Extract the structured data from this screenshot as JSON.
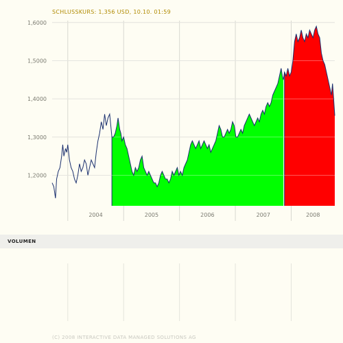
{
  "header": {
    "text": "SCHLUSSKURS: 1,356 USD, 10.10. 01:59"
  },
  "volume": {
    "label": "VOLUMEN"
  },
  "footer": {
    "copyright": "(C) 2008 INTERACTIVE DATA MANAGED SOLUTIONS AG"
  },
  "chart_data": {
    "type": "line",
    "title": "",
    "xlabel": "",
    "ylabel": "",
    "x_tick_labels": [
      "2004",
      "2005",
      "2006",
      "2007",
      "2008"
    ],
    "y_tick_labels": [
      "1,2000",
      "1,3000",
      "1,4000",
      "1,5000",
      "1,6000"
    ],
    "y_ticks": [
      1.2,
      1.3,
      1.4,
      1.5,
      1.6
    ],
    "ylim": [
      1.12,
      1.605
    ],
    "xlim": [
      2003.72,
      2008.78
    ],
    "grid": true,
    "colors": {
      "line": "#1a2f6e",
      "up_fill": "#00ff00",
      "down_fill": "#ff0000",
      "grid": "#d8d8d0"
    },
    "series": [
      {
        "values": [
          [
            2003.72,
            1.18
          ],
          [
            2003.75,
            1.17
          ],
          [
            2003.78,
            1.14
          ],
          [
            2003.8,
            1.19
          ],
          [
            2003.83,
            1.21
          ],
          [
            2003.86,
            1.22
          ],
          [
            2003.89,
            1.25
          ],
          [
            2003.91,
            1.28
          ],
          [
            2003.93,
            1.25
          ],
          [
            2003.96,
            1.27
          ],
          [
            2003.98,
            1.26
          ],
          [
            2004.0,
            1.28
          ],
          [
            2004.03,
            1.24
          ],
          [
            2004.06,
            1.22
          ],
          [
            2004.09,
            1.21
          ],
          [
            2004.12,
            1.19
          ],
          [
            2004.15,
            1.18
          ],
          [
            2004.18,
            1.2
          ],
          [
            2004.21,
            1.23
          ],
          [
            2004.24,
            1.21
          ],
          [
            2004.27,
            1.22
          ],
          [
            2004.3,
            1.24
          ],
          [
            2004.33,
            1.23
          ],
          [
            2004.36,
            1.2
          ],
          [
            2004.39,
            1.22
          ],
          [
            2004.42,
            1.24
          ],
          [
            2004.45,
            1.23
          ],
          [
            2004.48,
            1.22
          ],
          [
            2004.51,
            1.26
          ],
          [
            2004.54,
            1.29
          ],
          [
            2004.57,
            1.31
          ],
          [
            2004.6,
            1.34
          ],
          [
            2004.63,
            1.32
          ],
          [
            2004.66,
            1.36
          ],
          [
            2004.69,
            1.33
          ],
          [
            2004.72,
            1.35
          ],
          [
            2004.75,
            1.36
          ],
          [
            2004.79,
            1.3
          ],
          [
            2004.82,
            1.3
          ],
          [
            2004.85,
            1.31
          ],
          [
            2004.88,
            1.33
          ],
          [
            2004.9,
            1.35
          ],
          [
            2004.93,
            1.32
          ],
          [
            2004.95,
            1.31
          ],
          [
            2004.97,
            1.29
          ],
          [
            2005.0,
            1.3
          ],
          [
            2005.03,
            1.28
          ],
          [
            2005.06,
            1.27
          ],
          [
            2005.09,
            1.25
          ],
          [
            2005.12,
            1.23
          ],
          [
            2005.15,
            1.21
          ],
          [
            2005.18,
            1.2
          ],
          [
            2005.21,
            1.22
          ],
          [
            2005.24,
            1.21
          ],
          [
            2005.27,
            1.22
          ],
          [
            2005.3,
            1.24
          ],
          [
            2005.33,
            1.25
          ],
          [
            2005.36,
            1.22
          ],
          [
            2005.39,
            1.21
          ],
          [
            2005.42,
            1.2
          ],
          [
            2005.45,
            1.21
          ],
          [
            2005.48,
            1.2
          ],
          [
            2005.51,
            1.19
          ],
          [
            2005.54,
            1.18
          ],
          [
            2005.57,
            1.18
          ],
          [
            2005.6,
            1.17
          ],
          [
            2005.63,
            1.18
          ],
          [
            2005.66,
            1.2
          ],
          [
            2005.69,
            1.21
          ],
          [
            2005.72,
            1.2
          ],
          [
            2005.75,
            1.19
          ],
          [
            2005.78,
            1.19
          ],
          [
            2005.81,
            1.18
          ],
          [
            2005.84,
            1.19
          ],
          [
            2005.87,
            1.21
          ],
          [
            2005.9,
            1.2
          ],
          [
            2005.93,
            1.21
          ],
          [
            2005.96,
            1.22
          ],
          [
            2005.99,
            1.2
          ],
          [
            2006.02,
            1.21
          ],
          [
            2006.05,
            1.2
          ],
          [
            2006.08,
            1.22
          ],
          [
            2006.11,
            1.23
          ],
          [
            2006.14,
            1.24
          ],
          [
            2006.17,
            1.26
          ],
          [
            2006.2,
            1.28
          ],
          [
            2006.23,
            1.29
          ],
          [
            2006.26,
            1.28
          ],
          [
            2006.29,
            1.27
          ],
          [
            2006.32,
            1.28
          ],
          [
            2006.35,
            1.29
          ],
          [
            2006.38,
            1.27
          ],
          [
            2006.41,
            1.28
          ],
          [
            2006.44,
            1.29
          ],
          [
            2006.47,
            1.28
          ],
          [
            2006.5,
            1.27
          ],
          [
            2006.53,
            1.28
          ],
          [
            2006.56,
            1.26
          ],
          [
            2006.59,
            1.27
          ],
          [
            2006.62,
            1.28
          ],
          [
            2006.65,
            1.29
          ],
          [
            2006.68,
            1.31
          ],
          [
            2006.71,
            1.33
          ],
          [
            2006.74,
            1.32
          ],
          [
            2006.77,
            1.3
          ],
          [
            2006.8,
            1.3
          ],
          [
            2006.83,
            1.31
          ],
          [
            2006.86,
            1.32
          ],
          [
            2006.89,
            1.31
          ],
          [
            2006.92,
            1.32
          ],
          [
            2006.95,
            1.34
          ],
          [
            2006.98,
            1.33
          ],
          [
            2007.01,
            1.3
          ],
          [
            2007.04,
            1.3
          ],
          [
            2007.07,
            1.31
          ],
          [
            2007.1,
            1.32
          ],
          [
            2007.13,
            1.31
          ],
          [
            2007.16,
            1.33
          ],
          [
            2007.19,
            1.34
          ],
          [
            2007.22,
            1.35
          ],
          [
            2007.25,
            1.36
          ],
          [
            2007.28,
            1.35
          ],
          [
            2007.31,
            1.34
          ],
          [
            2007.34,
            1.33
          ],
          [
            2007.37,
            1.34
          ],
          [
            2007.4,
            1.35
          ],
          [
            2007.43,
            1.34
          ],
          [
            2007.46,
            1.36
          ],
          [
            2007.49,
            1.37
          ],
          [
            2007.52,
            1.36
          ],
          [
            2007.55,
            1.38
          ],
          [
            2007.58,
            1.39
          ],
          [
            2007.61,
            1.38
          ],
          [
            2007.64,
            1.39
          ],
          [
            2007.67,
            1.41
          ],
          [
            2007.7,
            1.42
          ],
          [
            2007.73,
            1.43
          ],
          [
            2007.76,
            1.44
          ],
          [
            2007.79,
            1.46
          ],
          [
            2007.82,
            1.48
          ],
          [
            2007.84,
            1.46
          ],
          [
            2007.86,
            1.45
          ],
          [
            2007.88,
            1.47
          ],
          [
            2007.91,
            1.46
          ],
          [
            2007.94,
            1.48
          ],
          [
            2007.97,
            1.46
          ],
          [
            2008.0,
            1.47
          ],
          [
            2008.03,
            1.5
          ],
          [
            2008.06,
            1.55
          ],
          [
            2008.09,
            1.57
          ],
          [
            2008.12,
            1.55
          ],
          [
            2008.15,
            1.56
          ],
          [
            2008.18,
            1.58
          ],
          [
            2008.21,
            1.56
          ],
          [
            2008.24,
            1.55
          ],
          [
            2008.27,
            1.57
          ],
          [
            2008.3,
            1.56
          ],
          [
            2008.33,
            1.58
          ],
          [
            2008.36,
            1.57
          ],
          [
            2008.39,
            1.56
          ],
          [
            2008.42,
            1.58
          ],
          [
            2008.45,
            1.59
          ],
          [
            2008.48,
            1.57
          ],
          [
            2008.51,
            1.56
          ],
          [
            2008.54,
            1.52
          ],
          [
            2008.57,
            1.5
          ],
          [
            2008.6,
            1.49
          ],
          [
            2008.63,
            1.47
          ],
          [
            2008.66,
            1.45
          ],
          [
            2008.69,
            1.43
          ],
          [
            2008.72,
            1.41
          ],
          [
            2008.74,
            1.44
          ],
          [
            2008.76,
            1.4
          ],
          [
            2008.78,
            1.356
          ]
        ]
      }
    ],
    "fills": [
      {
        "from": 2004.79,
        "to": 2007.87,
        "color": "up_fill"
      },
      {
        "from": 2007.88,
        "to": 2008.78,
        "color": "down_fill"
      }
    ]
  }
}
